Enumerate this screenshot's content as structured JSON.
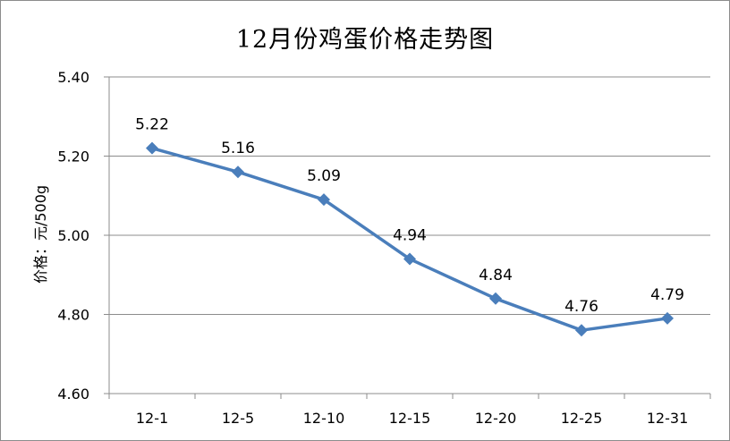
{
  "chart_data": {
    "type": "line",
    "title": "12月份鸡蛋价格走势图",
    "xlabel": "",
    "ylabel": "价格：元/500g",
    "categories": [
      "12-1",
      "12-5",
      "12-10",
      "12-15",
      "12-20",
      "12-25",
      "12-31"
    ],
    "series": [
      {
        "values": [
          5.22,
          5.16,
          5.09,
          4.94,
          4.84,
          4.76,
          4.79
        ],
        "data_labels": [
          "5.22",
          "5.16",
          "5.09",
          "4.94",
          "4.84",
          "4.76",
          "4.79"
        ],
        "color": "#4a7ebb"
      }
    ],
    "ylim": [
      4.6,
      5.4
    ],
    "yticks": [
      4.6,
      4.8,
      5.0,
      5.2,
      5.4
    ],
    "ytick_labels": [
      "4.60",
      "4.80",
      "5.00",
      "5.20",
      "5.40"
    ],
    "grid": true,
    "legend": "none"
  }
}
